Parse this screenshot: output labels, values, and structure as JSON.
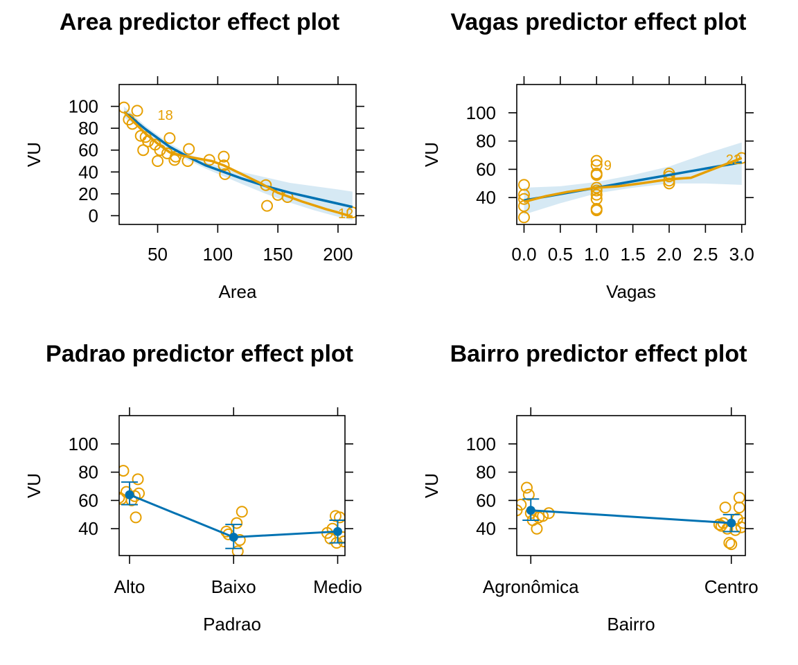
{
  "chart_data": [
    {
      "type": "line",
      "title": "Area predictor effect plot",
      "xlabel": "Area",
      "ylabel": "VU",
      "xlim": [
        18,
        215
      ],
      "ylim": [
        -8,
        120
      ],
      "xticks": [
        50,
        100,
        150,
        200
      ],
      "xtick_labels": [
        "50",
        "100",
        "150",
        "200"
      ],
      "yticks": [
        0,
        20,
        40,
        60,
        80,
        100
      ],
      "ytick_labels": [
        "0",
        "20",
        "40",
        "60",
        "80",
        "100"
      ],
      "fit": {
        "x": [
          22,
          30,
          40,
          50,
          60,
          75,
          90,
          105,
          120,
          140,
          160,
          180,
          200,
          212
        ],
        "y": [
          95,
          88,
          79,
          71,
          63,
          54,
          46,
          40,
          34,
          27,
          21,
          16,
          11,
          8
        ]
      },
      "band_lower": [
        90,
        84,
        76,
        68,
        60,
        51,
        43,
        36,
        29,
        20,
        12,
        5,
        -1,
        -4
      ],
      "band_upper": [
        100,
        92,
        82,
        74,
        66,
        57,
        49,
        44,
        40,
        35,
        30,
        27,
        24,
        22
      ],
      "smooth": {
        "x": [
          22,
          30,
          40,
          50,
          60,
          70,
          80,
          95,
          105,
          120,
          135,
          150,
          170,
          190,
          200,
          212
        ],
        "y": [
          95,
          86,
          75,
          66,
          58,
          55,
          53,
          50,
          46,
          38,
          30,
          21,
          13,
          6,
          3,
          -1
        ]
      },
      "points": [
        [
          22,
          99
        ],
        [
          26,
          88
        ],
        [
          29,
          84
        ],
        [
          33,
          96
        ],
        [
          36,
          73
        ],
        [
          38,
          60
        ],
        [
          40,
          72
        ],
        [
          42,
          68
        ],
        [
          48,
          65
        ],
        [
          50,
          50
        ],
        [
          52,
          60
        ],
        [
          58,
          57
        ],
        [
          60,
          71
        ],
        [
          64,
          51
        ],
        [
          65,
          54
        ],
        [
          75,
          50
        ],
        [
          76,
          61
        ],
        [
          93,
          51
        ],
        [
          105,
          54
        ],
        [
          105,
          46
        ],
        [
          106,
          38
        ],
        [
          140,
          28
        ],
        [
          141,
          9
        ],
        [
          150,
          19
        ],
        [
          158,
          17
        ],
        [
          212,
          3
        ]
      ],
      "point_labels": [
        {
          "text": "18",
          "x": 50,
          "y": 92
        },
        {
          "text": "12",
          "x": 200,
          "y": 2
        }
      ]
    },
    {
      "type": "line",
      "title": "Vagas predictor effect plot",
      "xlabel": "Vagas",
      "ylabel": "VU",
      "xlim": [
        -0.1,
        3.05
      ],
      "ylim": [
        21,
        120
      ],
      "xticks": [
        0,
        0.5,
        1,
        1.5,
        2,
        2.5,
        3
      ],
      "xtick_labels": [
        "0.0",
        "0.5",
        "1.0",
        "1.5",
        "2.0",
        "2.5",
        "3.0"
      ],
      "yticks": [
        40,
        60,
        80,
        100
      ],
      "ytick_labels": [
        "40",
        "60",
        "80",
        "100"
      ],
      "fit": {
        "x": [
          0,
          0.5,
          1,
          1.5,
          2,
          2.5,
          3
        ],
        "y": [
          38,
          42.5,
          47,
          51.5,
          56,
          60.5,
          65
        ]
      },
      "band_lower": [
        28,
        36,
        43,
        47,
        50,
        50,
        49
      ],
      "band_upper": [
        47,
        48,
        51,
        56,
        62,
        71,
        79
      ],
      "smooth": {
        "x": [
          0,
          0.3,
          0.6,
          1,
          1.3,
          1.6,
          2,
          2.3,
          2.6,
          3
        ],
        "y": [
          37,
          41,
          44,
          47,
          48,
          50,
          53,
          54,
          60,
          68
        ]
      },
      "points": [
        [
          0,
          49
        ],
        [
          0,
          42
        ],
        [
          0,
          39
        ],
        [
          0,
          34
        ],
        [
          0,
          26
        ],
        [
          1,
          66
        ],
        [
          1,
          63
        ],
        [
          1,
          57
        ],
        [
          1,
          56
        ],
        [
          1,
          47
        ],
        [
          1,
          45
        ],
        [
          1,
          42
        ],
        [
          1,
          39
        ],
        [
          1,
          32
        ],
        [
          1,
          31
        ],
        [
          2,
          57
        ],
        [
          2,
          55
        ],
        [
          2,
          52
        ],
        [
          2,
          50
        ],
        [
          3,
          68
        ]
      ],
      "point_labels": [
        {
          "text": "9",
          "x": 1.1,
          "y": 63
        },
        {
          "text": "22",
          "x": 2.78,
          "y": 67
        }
      ]
    },
    {
      "type": "line",
      "title": "Padrao predictor effect plot",
      "xlabel": "Padrao",
      "ylabel": "VU",
      "categorical": true,
      "xlim": [
        -0.1,
        2.07
      ],
      "ylim": [
        21,
        120
      ],
      "xticks": [
        0,
        1,
        2
      ],
      "xtick_labels": [
        "Alto",
        "Baixo",
        "Medio"
      ],
      "yticks": [
        40,
        60,
        80,
        100
      ],
      "ytick_labels": [
        "40",
        "60",
        "80",
        "100"
      ],
      "effects": [
        {
          "x": 0,
          "y": 64,
          "lower": 57,
          "upper": 73
        },
        {
          "x": 1,
          "y": 34,
          "lower": 26,
          "upper": 43
        },
        {
          "x": 2,
          "y": 38,
          "lower": 30,
          "upper": 46
        }
      ],
      "points": [
        [
          -0.06,
          81
        ],
        [
          -0.1,
          62
        ],
        [
          -0.03,
          66
        ],
        [
          0.02,
          60
        ],
        [
          0.05,
          63
        ],
        [
          0.08,
          75
        ],
        [
          0.09,
          65
        ],
        [
          0.06,
          48
        ],
        [
          -0.08,
          61
        ],
        [
          0.93,
          38
        ],
        [
          0.95,
          36
        ],
        [
          1.03,
          44
        ],
        [
          1.08,
          52
        ],
        [
          1.04,
          24
        ],
        [
          1.06,
          32
        ],
        [
          1.9,
          37
        ],
        [
          1.93,
          33
        ],
        [
          1.98,
          49
        ],
        [
          2.02,
          48
        ],
        [
          2.05,
          34
        ],
        [
          2.06,
          31
        ],
        [
          1.99,
          30
        ],
        [
          1.95,
          40
        ]
      ]
    },
    {
      "type": "line",
      "title": "Bairro predictor effect plot",
      "xlabel": "Bairro",
      "ylabel": "VU",
      "categorical": true,
      "xlim": [
        -0.07,
        1.07
      ],
      "ylim": [
        21,
        120
      ],
      "xticks": [
        0,
        1
      ],
      "xtick_labels": [
        "Agronômica",
        "Centro"
      ],
      "yticks": [
        40,
        60,
        80,
        100
      ],
      "ytick_labels": [
        "40",
        "60",
        "80",
        "100"
      ],
      "effects": [
        {
          "x": 0,
          "y": 53,
          "lower": 46,
          "upper": 61
        },
        {
          "x": 1,
          "y": 44,
          "lower": 38,
          "upper": 50
        }
      ],
      "points": [
        [
          -0.07,
          53
        ],
        [
          -0.05,
          57
        ],
        [
          -0.02,
          69
        ],
        [
          -0.01,
          64
        ],
        [
          0.0,
          51
        ],
        [
          0.01,
          46
        ],
        [
          0.03,
          40
        ],
        [
          0.04,
          48
        ],
        [
          0.06,
          49
        ],
        [
          0.09,
          51
        ],
        [
          0.94,
          43
        ],
        [
          0.95,
          42
        ],
        [
          0.96,
          44
        ],
        [
          0.97,
          55
        ],
        [
          0.98,
          40
        ],
        [
          0.99,
          30
        ],
        [
          1.0,
          29
        ],
        [
          1.02,
          39
        ],
        [
          1.03,
          47
        ],
        [
          1.04,
          55
        ],
        [
          1.04,
          62
        ],
        [
          1.06,
          44
        ],
        [
          1.05,
          41
        ]
      ]
    }
  ]
}
